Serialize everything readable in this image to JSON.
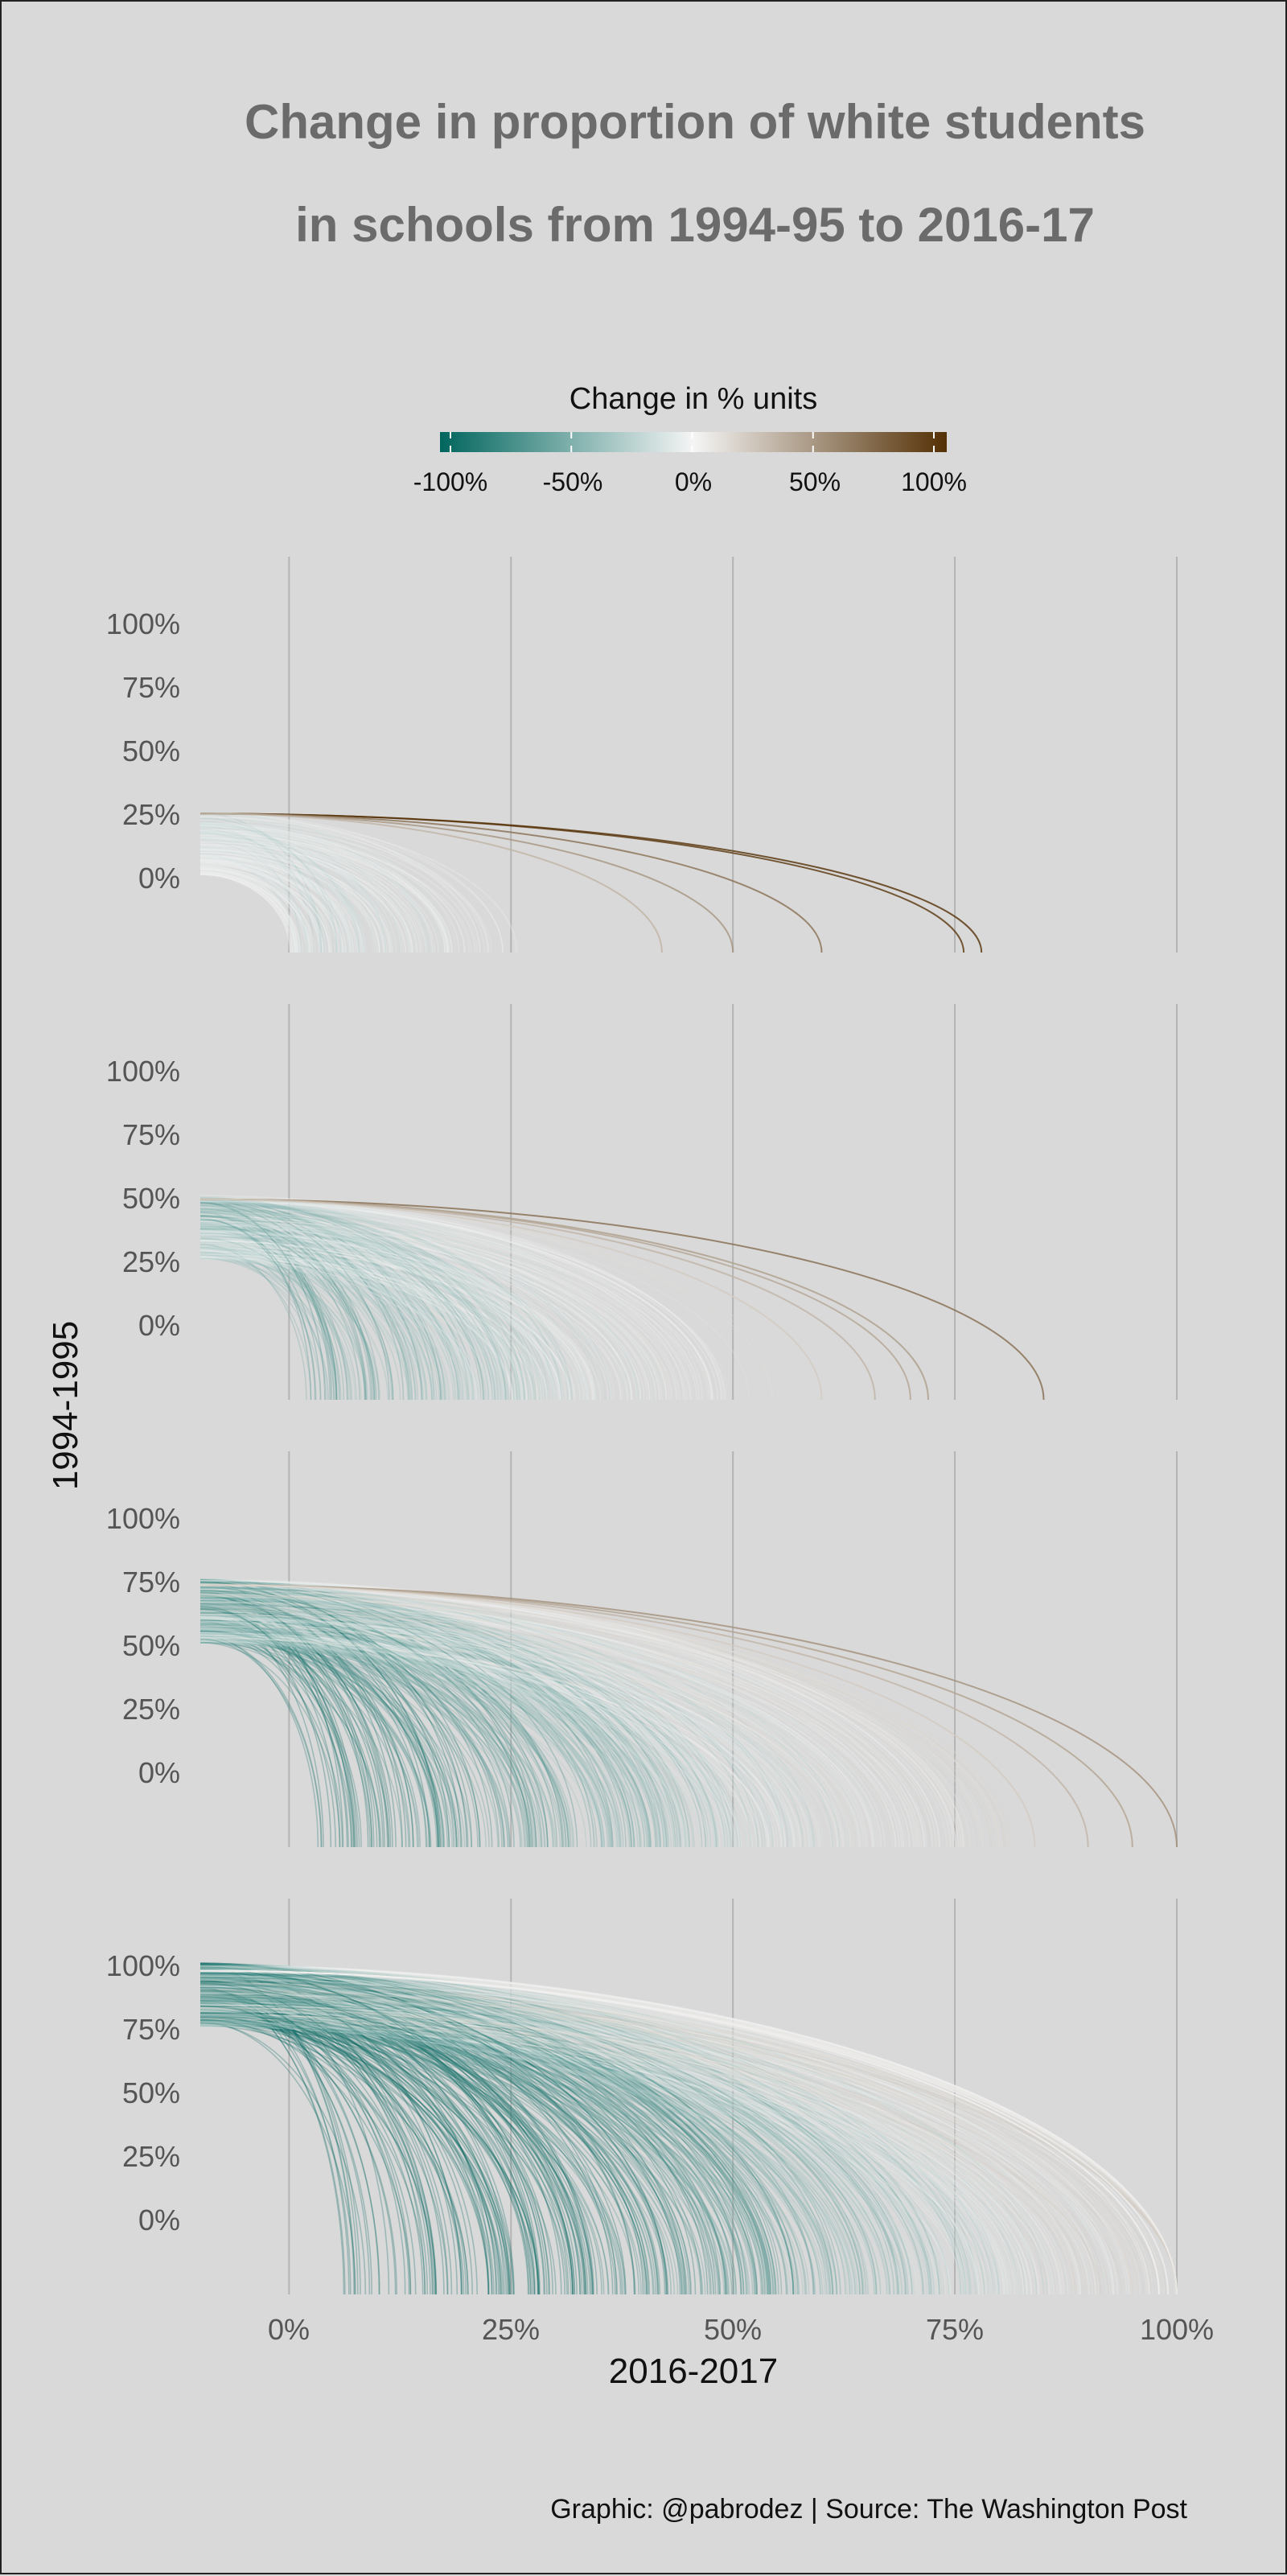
{
  "chart_data": {
    "type": "arc",
    "title_lines": [
      "Change in proportion of white students",
      "in schools from 1994-95 to 2016-17"
    ],
    "legend": {
      "title": "Change in % units",
      "ticks": [
        "-100%",
        "-50%",
        "0%",
        "50%",
        "100%"
      ],
      "tick_values": [
        -1,
        -0.5,
        0,
        0.5,
        1
      ],
      "colors": {
        "neg": "#01665e",
        "mid": "#f5f5f5",
        "pos": "#543005"
      }
    },
    "xlabel": "2016-2017",
    "ylabel": "1994-1995",
    "x_ticks": [
      "0%",
      "25%",
      "50%",
      "75%",
      "100%"
    ],
    "x_tick_values": [
      0,
      0.25,
      0.5,
      0.75,
      1
    ],
    "y_ticks": [
      "100%",
      "75%",
      "50%",
      "25%",
      "0%"
    ],
    "y_tick_values": [
      1,
      0.75,
      0.5,
      0.25,
      0
    ],
    "xlim": [
      -0.1,
      1
    ],
    "panels": [
      {
        "bin": [
          0,
          0.25
        ],
        "x_end_max": 0.78,
        "count": 220,
        "outliers": [
          0.78,
          0.76,
          0.6,
          0.5,
          0.42
        ]
      },
      {
        "bin": [
          0.25,
          0.5
        ],
        "x_end_max": 0.85,
        "count": 380,
        "outliers": [
          0.85,
          0.72,
          0.7,
          0.66,
          0.6
        ]
      },
      {
        "bin": [
          0.5,
          0.75
        ],
        "x_end_max": 1.0,
        "count": 480,
        "outliers": [
          1.0,
          0.95,
          0.9,
          0.84,
          0.8
        ]
      },
      {
        "bin": [
          0.75,
          1.0
        ],
        "x_end_max": 1.0,
        "count": 620,
        "outliers": [
          1.0,
          0.99,
          0.98
        ]
      }
    ],
    "caption": "Graphic: @pabrodez | Source: The Washington Post"
  }
}
